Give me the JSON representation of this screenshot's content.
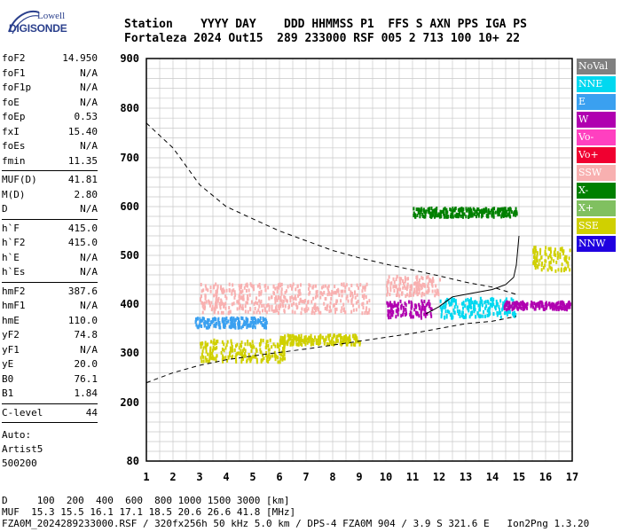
{
  "logo": {
    "top": "Lowell",
    "brand": "DIGISONDE"
  },
  "header": {
    "line1": "Station    YYYY DAY    DDD HHMMSS P1  FFS S AXN PPS IGA PS",
    "line2": "Fortaleza 2024 Out15  289 233000 RSF 005 2 713 100 10+ 22"
  },
  "params": [
    {
      "name": "foF2",
      "value": "14.950"
    },
    {
      "name": "foF1",
      "value": "N/A"
    },
    {
      "name": "foF1p",
      "value": "N/A"
    },
    {
      "name": "foE",
      "value": "N/A"
    },
    {
      "name": "foEp",
      "value": "0.53"
    },
    {
      "name": "fxI",
      "value": "15.40"
    },
    {
      "name": "foEs",
      "value": "N/A"
    },
    {
      "name": "fmin",
      "value": "11.35"
    },
    {
      "name": "sep1",
      "sep": true
    },
    {
      "name": "MUF(D)",
      "value": "41.81"
    },
    {
      "name": "M(D)",
      "value": "2.80"
    },
    {
      "name": "D",
      "value": "N/A"
    },
    {
      "name": "sep2",
      "sep": true
    },
    {
      "name": "h`F",
      "value": "415.0"
    },
    {
      "name": "h`F2",
      "value": "415.0"
    },
    {
      "name": "h`E",
      "value": "N/A"
    },
    {
      "name": "h`Es",
      "value": "N/A"
    },
    {
      "name": "sep3",
      "sep": true
    },
    {
      "name": "hmF2",
      "value": "387.6"
    },
    {
      "name": "hmF1",
      "value": "N/A"
    },
    {
      "name": "hmE",
      "value": "110.0"
    },
    {
      "name": "yF2",
      "value": "74.8"
    },
    {
      "name": "yF1",
      "value": "N/A"
    },
    {
      "name": "yE",
      "value": "20.0"
    },
    {
      "name": "B0",
      "value": "76.1"
    },
    {
      "name": "B1",
      "value": "1.84"
    },
    {
      "name": "sep4",
      "sep": true
    },
    {
      "name": "C-level",
      "value": "44"
    },
    {
      "name": "sep5",
      "sep": true
    }
  ],
  "auto": {
    "l1": "Auto:",
    "l2": "Artist5",
    "l3": "500200"
  },
  "legend": [
    {
      "label": "NoVal",
      "color": "#808080"
    },
    {
      "label": "NNE",
      "color": "#00d8f0"
    },
    {
      "label": "E",
      "color": "#3aa0f0"
    },
    {
      "label": "W",
      "color": "#b000b0"
    },
    {
      "label": "Vo-",
      "color": "#ff40c0"
    },
    {
      "label": "Vo+",
      "color": "#f00030"
    },
    {
      "label": "SSW",
      "color": "#f8b0b0"
    },
    {
      "label": "X-",
      "color": "#008000"
    },
    {
      "label": "X+",
      "color": "#80c060"
    },
    {
      "label": "SSE",
      "color": "#d0d000"
    },
    {
      "label": "NNW",
      "color": "#2000e0"
    }
  ],
  "footer": {
    "line1": "D     100  200  400  600  800 1000 1500 3000 [km]",
    "line2": "MUF  15.3 15.5 16.1 17.1 18.5 20.6 26.6 41.8 [MHz]",
    "line3": "FZA0M_2024289233000.RSF / 320fx256h 50 kHz 5.0 km / DPS-4 FZA0M 904 / 3.9 S 321.6 E   Ion2Png 1.3.20"
  },
  "chart_data": {
    "type": "scatter",
    "title": "",
    "xlabel": "",
    "ylabel": "",
    "xlim": [
      1,
      17
    ],
    "ylim": [
      80,
      900
    ],
    "xticks": [
      1,
      2,
      3,
      4,
      5,
      6,
      7,
      8,
      9,
      10,
      11,
      12,
      13,
      14,
      15,
      16,
      17
    ],
    "yticks": [
      80,
      200,
      300,
      400,
      500,
      600,
      700,
      800,
      900
    ],
    "grid": true,
    "clusters": [
      {
        "color": "#f8b0b0",
        "x": [
          3,
          9.4
        ],
        "y": [
          385,
          445
        ]
      },
      {
        "color": "#d0d000",
        "x": [
          3,
          6.2
        ],
        "y": [
          285,
          330
        ]
      },
      {
        "color": "#d0d000",
        "x": [
          6,
          9
        ],
        "y": [
          320,
          340
        ]
      },
      {
        "color": "#3aa0f0",
        "x": [
          2.8,
          5.5
        ],
        "y": [
          355,
          375
        ]
      },
      {
        "color": "#00d8f0",
        "x": [
          12,
          14.9
        ],
        "y": [
          375,
          415
        ]
      },
      {
        "color": "#b000b0",
        "x": [
          14.4,
          16.9
        ],
        "y": [
          392,
          408
        ]
      },
      {
        "color": "#b000b0",
        "x": [
          10,
          11.7
        ],
        "y": [
          375,
          410
        ]
      },
      {
        "color": "#008000",
        "x": [
          11,
          14.9
        ],
        "y": [
          582,
          600
        ]
      },
      {
        "color": "#d0d000",
        "x": [
          15.5,
          16.9
        ],
        "y": [
          470,
          520
        ]
      },
      {
        "color": "#f8b0b0",
        "x": [
          10,
          12
        ],
        "y": [
          420,
          460
        ]
      }
    ],
    "dashed_upper": {
      "x": [
        1,
        2,
        3,
        4,
        5,
        6,
        7,
        8,
        9,
        10,
        11,
        12,
        13,
        14,
        14.9
      ],
      "y": [
        770,
        720,
        645,
        600,
        575,
        550,
        530,
        510,
        495,
        482,
        470,
        458,
        445,
        435,
        420
      ]
    },
    "dashed_lower": {
      "x": [
        1,
        2,
        3,
        4,
        5,
        6,
        7,
        8,
        9,
        10,
        11,
        12,
        13,
        14,
        14.9
      ],
      "y": [
        240,
        260,
        275,
        286,
        294,
        301,
        308,
        316,
        324,
        332,
        340,
        350,
        360,
        365,
        375
      ]
    },
    "profile": {
      "x": [
        11.5,
        12,
        12.5,
        13,
        13.5,
        14,
        14.5,
        14.8,
        14.9,
        15
      ],
      "y": [
        380,
        395,
        415,
        420,
        425,
        430,
        440,
        455,
        480,
        540
      ]
    }
  }
}
